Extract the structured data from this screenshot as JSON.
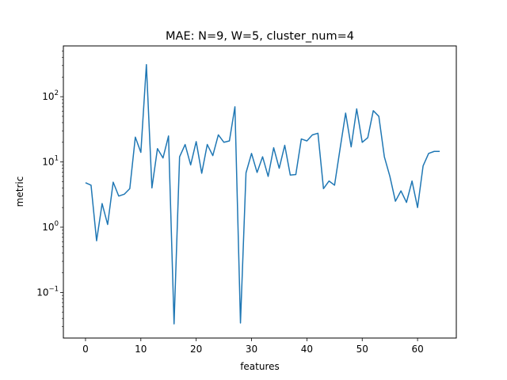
{
  "chart_data": {
    "type": "line",
    "title": "MAE: N=9, W=5, cluster_num=4",
    "xlabel": "features",
    "ylabel": "metric",
    "yscale": "log",
    "xlim": [
      -4,
      67
    ],
    "ylim": [
      0.02,
      600
    ],
    "grid": false,
    "x_ticks": [
      0,
      10,
      20,
      30,
      40,
      50,
      60
    ],
    "y_ticks": [
      {
        "value": 0.1,
        "base": "10",
        "exp": "−1"
      },
      {
        "value": 1,
        "base": "10",
        "exp": "0"
      },
      {
        "value": 10,
        "base": "10",
        "exp": "1"
      },
      {
        "value": 100,
        "base": "10",
        "exp": "2"
      }
    ],
    "color": "#1f77b4",
    "x": [
      0,
      1,
      2,
      3,
      4,
      5,
      6,
      7,
      8,
      9,
      10,
      11,
      12,
      13,
      14,
      15,
      16,
      17,
      18,
      19,
      20,
      21,
      22,
      23,
      24,
      25,
      26,
      27,
      28,
      29,
      30,
      31,
      32,
      33,
      34,
      35,
      36,
      37,
      38,
      39,
      40,
      41,
      42,
      43,
      44,
      45,
      46,
      47,
      48,
      49,
      50,
      51,
      52,
      53,
      54,
      55,
      56,
      57,
      58,
      59,
      60,
      61,
      62,
      63,
      64
    ],
    "values": [
      4.8,
      4.4,
      0.62,
      2.3,
      1.1,
      4.9,
      3.0,
      3.2,
      3.9,
      24,
      14,
      310,
      4.0,
      16,
      11.5,
      25,
      0.033,
      12,
      18.5,
      9,
      20.5,
      6.7,
      18.5,
      12.5,
      26,
      20,
      21,
      70,
      0.034,
      6.8,
      13.5,
      6.9,
      12,
      6.0,
      16.5,
      8.0,
      18,
      6.3,
      6.4,
      22.5,
      21,
      26,
      27.5,
      3.9,
      5.1,
      4.4,
      16,
      56,
      17,
      65,
      20,
      23.5,
      61,
      50,
      12,
      6.0,
      2.5,
      3.6,
      2.4,
      5.1,
      2.0,
      8.7,
      13.5,
      14.5,
      14.5
    ]
  }
}
